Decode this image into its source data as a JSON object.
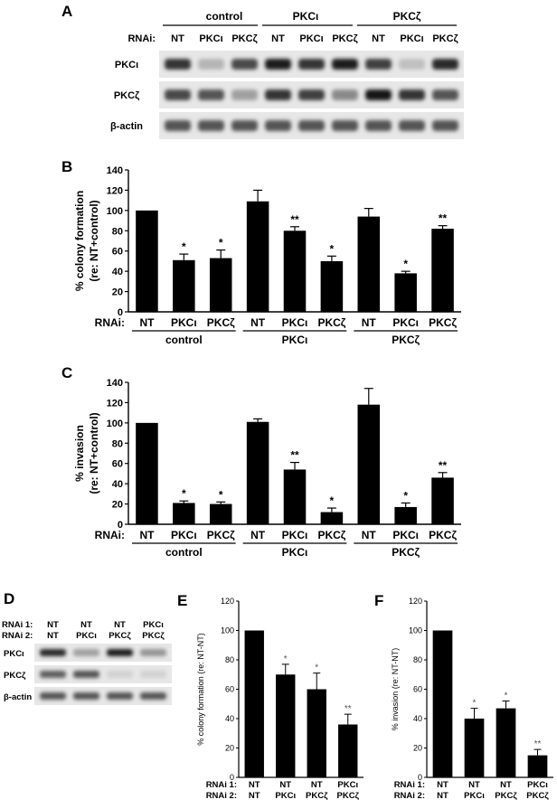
{
  "panels": {
    "a": "A",
    "b": "B",
    "c": "C",
    "d": "D",
    "e": "E",
    "f": "F"
  },
  "blot_a": {
    "groups": [
      "control",
      "PKCι",
      "PKCζ"
    ],
    "rnai_label": "RNAi:",
    "lanes": [
      "NT",
      "PKCι",
      "PKCζ",
      "NT",
      "PKCι",
      "PKCζ",
      "NT",
      "PKCι",
      "PKCζ"
    ],
    "rows": [
      {
        "label": "PKCι",
        "intensity": [
          0.85,
          0.25,
          0.75,
          0.95,
          0.85,
          0.95,
          0.8,
          0.2,
          0.9
        ]
      },
      {
        "label": "PKCζ",
        "intensity": [
          0.75,
          0.7,
          0.35,
          0.85,
          0.8,
          0.45,
          1.0,
          0.85,
          0.7
        ]
      },
      {
        "label": "β-actin",
        "intensity": [
          0.7,
          0.7,
          0.7,
          0.7,
          0.7,
          0.7,
          0.7,
          0.7,
          0.7
        ]
      }
    ]
  },
  "blot_d": {
    "rnai1_label": "RNAi 1:",
    "rnai2_label": "RNAi 2:",
    "rnai1": [
      "NT",
      "NT",
      "NT",
      "PKCι"
    ],
    "rnai2": [
      "NT",
      "PKCι",
      "PKCζ",
      "PKCζ"
    ],
    "rows": [
      {
        "label": "PKCι",
        "intensity": [
          0.9,
          0.35,
          0.95,
          0.4
        ]
      },
      {
        "label": "PKCζ",
        "intensity": [
          0.65,
          0.7,
          0.12,
          0.12
        ]
      },
      {
        "label": "β-actin",
        "intensity": [
          0.7,
          0.7,
          0.7,
          0.7
        ]
      }
    ]
  },
  "chart_data": [
    {
      "type": "bar",
      "ylabel": "% colony formation",
      "ylabel2": "(re: NT+control)",
      "ylim": [
        0,
        140
      ],
      "yticks": [
        0,
        20,
        40,
        60,
        80,
        100,
        120,
        140
      ],
      "rnai_label": "RNAi:",
      "categories": [
        "NT",
        "PKCι",
        "PKCζ",
        "NT",
        "PKCι",
        "PKCζ",
        "NT",
        "PKCι",
        "PKCζ"
      ],
      "groups": [
        "control",
        "PKCι",
        "PKCζ"
      ],
      "values": [
        100,
        51,
        53,
        109,
        80,
        50,
        94,
        38,
        82
      ],
      "errors": [
        0,
        6,
        8,
        11,
        4,
        5,
        8,
        2,
        3
      ],
      "significance": [
        "",
        "*",
        "*",
        "",
        "**",
        "*",
        "",
        "*",
        "**"
      ]
    },
    {
      "type": "bar",
      "ylabel": "% invasion",
      "ylabel2": "(re: NT+control)",
      "ylim": [
        0,
        140
      ],
      "yticks": [
        0,
        20,
        40,
        60,
        80,
        100,
        120,
        140
      ],
      "rnai_label": "RNAi:",
      "categories": [
        "NT",
        "PKCι",
        "PKCζ",
        "NT",
        "PKCι",
        "PKCζ",
        "NT",
        "PKCι",
        "PKCζ"
      ],
      "groups": [
        "control",
        "PKCι",
        "PKCζ"
      ],
      "values": [
        100,
        21,
        20,
        101,
        54,
        12,
        118,
        17,
        46
      ],
      "errors": [
        0,
        2,
        2,
        3,
        7,
        4,
        16,
        4,
        5
      ],
      "significance": [
        "",
        "*",
        "*",
        "",
        "**",
        "*",
        "",
        "*",
        "**"
      ]
    },
    {
      "type": "bar",
      "ylabel": "% colony formation (re: NT-NT)",
      "ylim": [
        0,
        120
      ],
      "yticks": [
        0,
        20,
        40,
        60,
        80,
        100,
        120
      ],
      "rnai1_label": "RNAi 1:",
      "rnai2_label": "RNAi 2:",
      "rnai1": [
        "NT",
        "NT",
        "NT",
        "PKCι"
      ],
      "rnai2": [
        "NT",
        "PKCι",
        "PKCζ",
        "PKCζ"
      ],
      "values": [
        100,
        70,
        60,
        36
      ],
      "errors": [
        0,
        7,
        11,
        7
      ],
      "significance": [
        "",
        "*",
        "*",
        "**"
      ]
    },
    {
      "type": "bar",
      "ylabel": "% invasion (re: NT-NT)",
      "ylim": [
        0,
        120
      ],
      "yticks": [
        0,
        20,
        40,
        60,
        80,
        100,
        120
      ],
      "rnai1_label": "RNAi 1:",
      "rnai2_label": "RNAi 2:",
      "rnai1": [
        "NT",
        "NT",
        "NT",
        "PKCι"
      ],
      "rnai2": [
        "NT",
        "PKCι",
        "PKCζ",
        "PKCζ"
      ],
      "values": [
        100,
        40,
        47,
        15
      ],
      "errors": [
        0,
        7,
        5,
        4
      ],
      "significance": [
        "",
        "*",
        "*",
        "**"
      ]
    }
  ]
}
